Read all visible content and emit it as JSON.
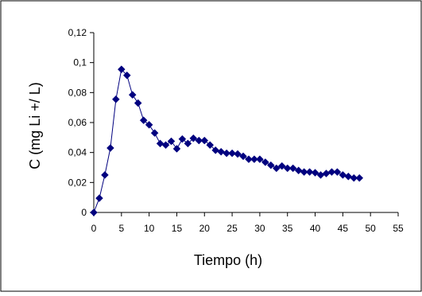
{
  "chart_data": {
    "type": "line",
    "title": "",
    "xlabel": "Tiempo (h)",
    "ylabel": "C (mg Li +/ L)",
    "xlim": [
      0,
      55
    ],
    "ylim": [
      0,
      0.12
    ],
    "x_ticks": [
      "0",
      "5",
      "10",
      "15",
      "20",
      "25",
      "30",
      "35",
      "40",
      "45",
      "50",
      "55"
    ],
    "y_ticks": [
      "0",
      "0,02",
      "0,04",
      "0,06",
      "0,08",
      "0,1",
      "0,12"
    ],
    "grid": false,
    "legend": "none",
    "colors": {
      "series": "#00007f",
      "axis": "#000000"
    },
    "series": [
      {
        "x": [
          0,
          1,
          2,
          3,
          4,
          5,
          6,
          7,
          8,
          9,
          10,
          11,
          12,
          13,
          14,
          15,
          16,
          17,
          18,
          19,
          20,
          21,
          22,
          23,
          24,
          25,
          26,
          27,
          28,
          29,
          30,
          31,
          32,
          33,
          34,
          35,
          36,
          37,
          38,
          39,
          40,
          41,
          42,
          43,
          44,
          45,
          46,
          47,
          48
        ],
        "y": [
          0,
          0.0095,
          0.025,
          0.043,
          0.0755,
          0.0955,
          0.0915,
          0.0785,
          0.073,
          0.0615,
          0.0585,
          0.053,
          0.046,
          0.045,
          0.0475,
          0.0425,
          0.049,
          0.046,
          0.0495,
          0.048,
          0.048,
          0.045,
          0.0415,
          0.0405,
          0.0395,
          0.0395,
          0.039,
          0.0375,
          0.0355,
          0.0355,
          0.0355,
          0.0335,
          0.0315,
          0.0295,
          0.031,
          0.0295,
          0.0295,
          0.028,
          0.027,
          0.027,
          0.0265,
          0.025,
          0.026,
          0.027,
          0.027,
          0.025,
          0.024,
          0.023,
          0.023
        ]
      }
    ]
  }
}
